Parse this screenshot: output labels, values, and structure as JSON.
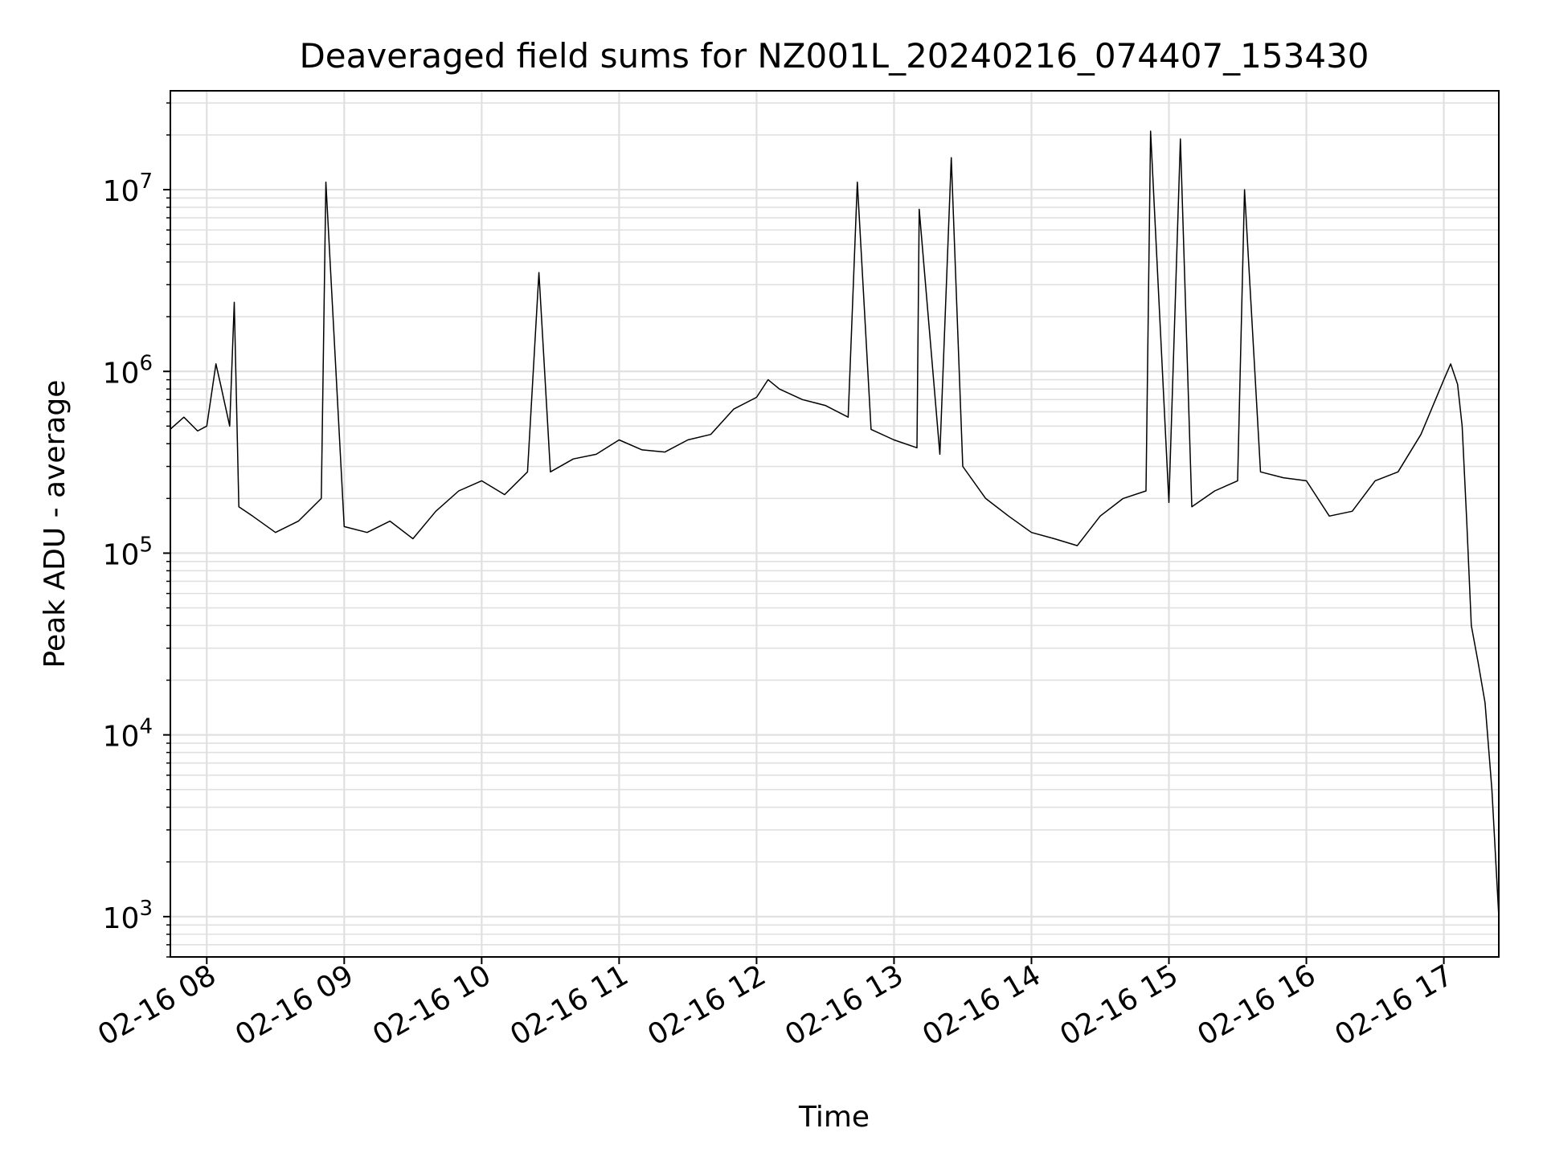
{
  "chart_data": {
    "type": "line",
    "title": "Deaveraged field sums for NZ001L_20240216_074407_153430",
    "xlabel": "Time",
    "ylabel": "Peak ADU - average",
    "yscale": "log",
    "ylim": [
      600,
      35000000
    ],
    "xlim": [
      "2024-02-16 07:44:07",
      "2024-02-16 17:24:00"
    ],
    "x_ticks": [
      "02-16 08",
      "02-16 09",
      "02-16 10",
      "02-16 11",
      "02-16 12",
      "02-16 13",
      "02-16 14",
      "02-16 15",
      "02-16 16",
      "02-16 17"
    ],
    "y_ticks": [
      {
        "base": "10",
        "exp": "3"
      },
      {
        "base": "10",
        "exp": "4"
      },
      {
        "base": "10",
        "exp": "5"
      },
      {
        "base": "10",
        "exp": "6"
      },
      {
        "base": "10",
        "exp": "7"
      }
    ],
    "grid": true,
    "line_color": "#000000",
    "series": [
      {
        "x": [
          "2024-02-16 07:44",
          "2024-02-16 07:50",
          "2024-02-16 07:56",
          "2024-02-16 08:00",
          "2024-02-16 08:04",
          "2024-02-16 08:06",
          "2024-02-16 08:10",
          "2024-02-16 08:12",
          "2024-02-16 08:14",
          "2024-02-16 08:20",
          "2024-02-16 08:30",
          "2024-02-16 08:40",
          "2024-02-16 08:50",
          "2024-02-16 08:52",
          "2024-02-16 09:00",
          "2024-02-16 09:10",
          "2024-02-16 09:20",
          "2024-02-16 09:30",
          "2024-02-16 09:40",
          "2024-02-16 09:50",
          "2024-02-16 10:00",
          "2024-02-16 10:10",
          "2024-02-16 10:20",
          "2024-02-16 10:25",
          "2024-02-16 10:30",
          "2024-02-16 10:40",
          "2024-02-16 10:50",
          "2024-02-16 11:00",
          "2024-02-16 11:10",
          "2024-02-16 11:20",
          "2024-02-16 11:30",
          "2024-02-16 11:40",
          "2024-02-16 11:50",
          "2024-02-16 12:00",
          "2024-02-16 12:05",
          "2024-02-16 12:10",
          "2024-02-16 12:20",
          "2024-02-16 12:30",
          "2024-02-16 12:40",
          "2024-02-16 12:44",
          "2024-02-16 12:50",
          "2024-02-16 13:00",
          "2024-02-16 13:10",
          "2024-02-16 13:11",
          "2024-02-16 13:20",
          "2024-02-16 13:25",
          "2024-02-16 13:30",
          "2024-02-16 13:40",
          "2024-02-16 13:50",
          "2024-02-16 14:00",
          "2024-02-16 14:10",
          "2024-02-16 14:20",
          "2024-02-16 14:30",
          "2024-02-16 14:40",
          "2024-02-16 14:50",
          "2024-02-16 14:52",
          "2024-02-16 15:00",
          "2024-02-16 15:05",
          "2024-02-16 15:10",
          "2024-02-16 15:20",
          "2024-02-16 15:30",
          "2024-02-16 15:33",
          "2024-02-16 15:40",
          "2024-02-16 15:50",
          "2024-02-16 16:00",
          "2024-02-16 16:10",
          "2024-02-16 16:20",
          "2024-02-16 16:30",
          "2024-02-16 16:40",
          "2024-02-16 16:50",
          "2024-02-16 17:00",
          "2024-02-16 17:03",
          "2024-02-16 17:06",
          "2024-02-16 17:08",
          "2024-02-16 17:10",
          "2024-02-16 17:12",
          "2024-02-16 17:15",
          "2024-02-16 17:18",
          "2024-02-16 17:21",
          "2024-02-16 17:24"
        ],
        "y": [
          480000,
          560000,
          470000,
          500000,
          1100000,
          850000,
          500000,
          2400000,
          180000,
          160000,
          130000,
          150000,
          200000,
          11000000,
          140000,
          130000,
          150000,
          120000,
          170000,
          220000,
          250000,
          210000,
          280000,
          3500000,
          280000,
          330000,
          350000,
          420000,
          370000,
          360000,
          420000,
          450000,
          620000,
          720000,
          900000,
          800000,
          700000,
          650000,
          560000,
          11000000,
          480000,
          420000,
          380000,
          7800000,
          350000,
          15000000,
          300000,
          200000,
          160000,
          130000,
          120000,
          110000,
          160000,
          200000,
          220000,
          21000000,
          190000,
          19000000,
          180000,
          220000,
          250000,
          10000000,
          280000,
          260000,
          250000,
          160000,
          170000,
          250000,
          280000,
          450000,
          900000,
          1100000,
          850000,
          500000,
          150000,
          40000,
          25000,
          15000,
          5000,
          1000
        ]
      }
    ]
  }
}
